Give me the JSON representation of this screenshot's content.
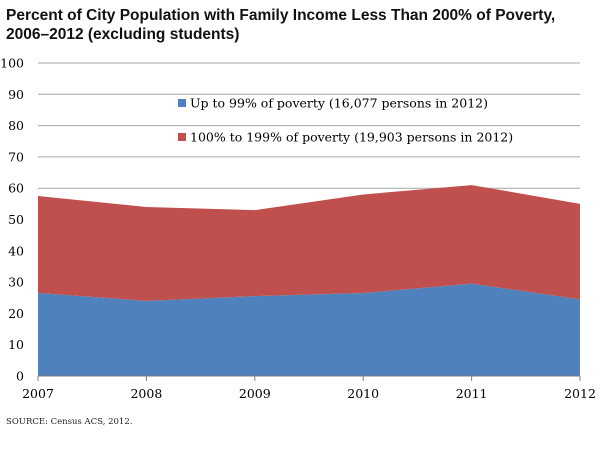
{
  "title_line1": "Percent of City Population with Family Income Less Than 200% of Poverty,",
  "title_line2": "2006–2012 (excluding students)",
  "source": "SOURCE:  Census ACS, 2012.",
  "chart_data": {
    "type": "area",
    "stacked": true,
    "title": "Percent of City Population with Family Income Less Than 200% of Poverty, 2006–2012 (excluding students)",
    "xlabel": "",
    "ylabel": "",
    "categories": [
      "2007",
      "2008",
      "2009",
      "2010",
      "2011",
      "2012"
    ],
    "ylim": [
      0,
      100
    ],
    "yticks": [
      0,
      10,
      20,
      30,
      40,
      50,
      60,
      70,
      80,
      90,
      100
    ],
    "grid": true,
    "legend_position": "top-center",
    "series": [
      {
        "name": "Up to 99% of poverty (16,077 persons in 2012)",
        "color": "#4f81bd",
        "values": [
          26.5,
          24,
          25.5,
          26.5,
          29.5,
          24.5
        ]
      },
      {
        "name": "100% to 199% of poverty (19,903 persons in 2012)",
        "color": "#c0504d",
        "values": [
          31,
          30,
          27.5,
          31.5,
          31.5,
          30.5
        ]
      }
    ]
  }
}
